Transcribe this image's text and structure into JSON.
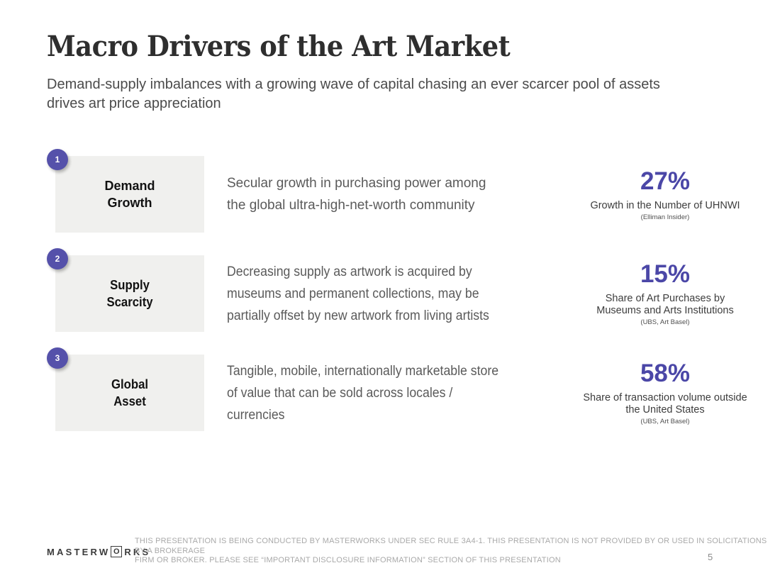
{
  "page": {
    "title": "Macro Drivers of the Art Market",
    "subtitle": "Demand-supply imbalances with a growing wave of capital chasing an ever scarcer pool of assets\ndrives art price appreciation",
    "page_number": "5"
  },
  "colors": {
    "accent_purple": "#5551aa",
    "stat_purple": "#4b47a7",
    "label_box_gray": "#f0f0ee",
    "title_dark": "#2e2e2e",
    "body_gray": "#5a5a5a",
    "disclaimer_gray": "#a9a9a9"
  },
  "rows": [
    {
      "number": "1",
      "label": "Demand\nGrowth",
      "description": "Secular growth in purchasing power among\nthe global ultra-high-net-worth community",
      "stat_value": "27%",
      "stat_caption": "Growth in the Number of UHNWI",
      "stat_source": "(Elliman Insider)"
    },
    {
      "number": "2",
      "label": "Supply\nScarcity",
      "description": "Decreasing supply as artwork is acquired by\nmuseums and permanent collections, may be\npartially offset by new artwork from living artists",
      "stat_value": "15%",
      "stat_caption": "Share of Art Purchases by\nMuseums and Arts Institutions",
      "stat_source": "(UBS, Art Basel)"
    },
    {
      "number": "3",
      "label": "Global\nAsset",
      "description": "Tangible, mobile, internationally marketable store\nof value that can be sold across locales /\ncurrencies",
      "stat_value": "58%",
      "stat_caption": "Share of transaction volume outside\nthe United States",
      "stat_source": "(UBS, Art Basel)"
    }
  ],
  "footer": {
    "logo_prefix": "MASTERW",
    "logo_o": "O",
    "logo_suffix": "RKS",
    "disclaimer": "THIS PRESENTATION IS BEING CONDUCTED BY MASTERWORKS UNDER SEC RULE 3A4-1. THIS PRESENTATION IS NOT PROVIDED BY OR USED IN SOLICITATIONS BY A BROKERAGE\nFIRM OR BROKER. PLEASE SEE “IMPORTANT DISCLOSURE INFORMATION” SECTION OF THIS PRESENTATION"
  }
}
